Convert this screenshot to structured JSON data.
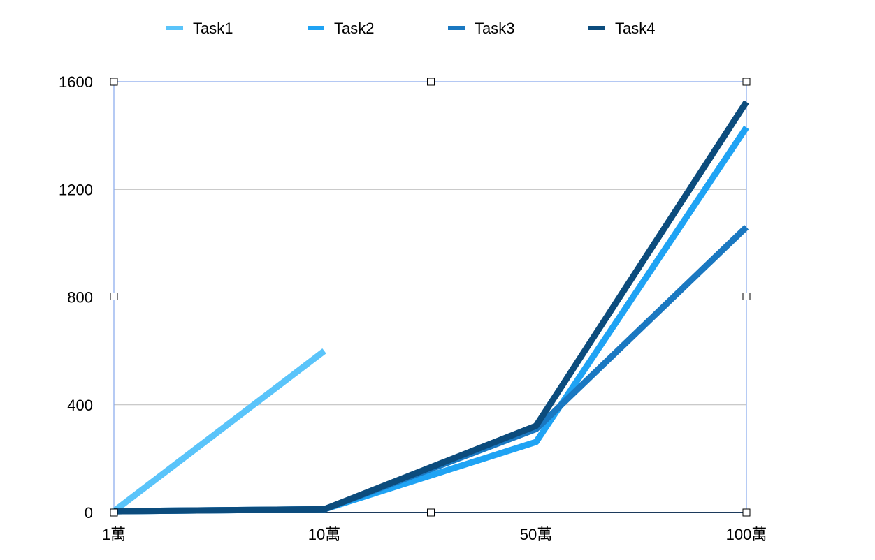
{
  "chart_data": {
    "type": "line",
    "categories": [
      "1萬",
      "10萬",
      "50萬",
      "100萬"
    ],
    "ylim": [
      0,
      1600
    ],
    "yticks": [
      0,
      400,
      800,
      1200,
      1600
    ],
    "grid": true,
    "legend_position": "top",
    "series": [
      {
        "name": "Task1",
        "color": "#5ac4fa",
        "values": [
          5,
          600,
          null,
          null
        ]
      },
      {
        "name": "Task2",
        "color": "#1fa3f4",
        "values": [
          5,
          12,
          262,
          1430
        ]
      },
      {
        "name": "Task3",
        "color": "#1a78c1",
        "values": [
          5,
          12,
          310,
          1060
        ]
      },
      {
        "name": "Task4",
        "color": "#0c4c7d",
        "values": [
          5,
          12,
          322,
          1525
        ]
      }
    ]
  }
}
